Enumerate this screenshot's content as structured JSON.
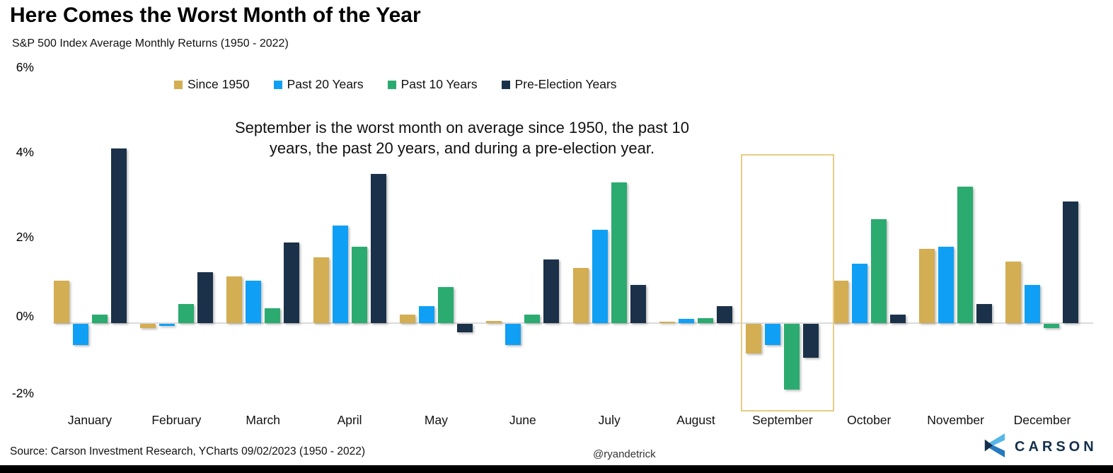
{
  "header": {
    "title": "Here Comes the Worst Month of the Year",
    "subtitle": "S&P 500 Index Average Monthly Returns (1950 - 2022)"
  },
  "annotation": {
    "line1": "September is the worst month on average since 1950, the past 10",
    "line2": "years, the past 20 years, and during a pre-election year."
  },
  "chart_data": {
    "type": "bar",
    "title": "Here Comes the Worst Month of the Year",
    "subtitle": "S&P 500 Index Average Monthly Returns (1950 - 2022)",
    "categories": [
      "January",
      "February",
      "March",
      "April",
      "May",
      "June",
      "July",
      "August",
      "September",
      "October",
      "November",
      "December"
    ],
    "series": [
      {
        "name": "Since 1950",
        "color": "#D3AE52",
        "values": [
          1.0,
          -0.1,
          1.1,
          1.55,
          0.2,
          0.05,
          1.3,
          0.03,
          -0.7,
          1.0,
          1.75,
          1.45
        ]
      },
      {
        "name": "Past 20 Years",
        "color": "#0FA0F5",
        "values": [
          -0.5,
          -0.05,
          1.0,
          2.3,
          0.4,
          -0.5,
          2.2,
          0.1,
          -0.5,
          1.4,
          1.8,
          0.9
        ]
      },
      {
        "name": "Past 10 Years",
        "color": "#2BAB70",
        "values": [
          0.2,
          0.45,
          0.35,
          1.8,
          0.85,
          0.2,
          3.3,
          0.12,
          -1.55,
          2.45,
          3.2,
          -0.1
        ]
      },
      {
        "name": "Pre-Election Years",
        "color": "#1B3149",
        "values": [
          4.1,
          1.2,
          1.9,
          3.5,
          -0.2,
          1.5,
          0.9,
          0.4,
          -0.8,
          0.2,
          0.45,
          2.85
        ]
      }
    ],
    "ylim": [
      -2.3,
      6.0
    ],
    "ytick_labels": [
      "6%",
      "4%",
      "2%",
      "0%",
      "-2%"
    ],
    "ytick_values": [
      6,
      4,
      2,
      0,
      -2
    ],
    "grid": false,
    "zero_line": true,
    "legend_position": "top",
    "highlight": {
      "category": "September",
      "border_color": "#E8CC82"
    }
  },
  "footer": {
    "source": "Source: Carson Investment Research, YCharts 09/02/2023 (1950 - 2022)",
    "handle": "@ryandetrick",
    "brand_name": "CARSON"
  },
  "colors": {
    "gold": "#D3AE52",
    "blue": "#0FA0F5",
    "green": "#2BAB70",
    "navy": "#1B3149",
    "zero_line": "#DBDBDB",
    "highlight_border": "#E8CC82",
    "brand_navy": "#14304D",
    "brand_light_blue": "#56B6E9",
    "brand_mid_blue": "#2579BE"
  }
}
